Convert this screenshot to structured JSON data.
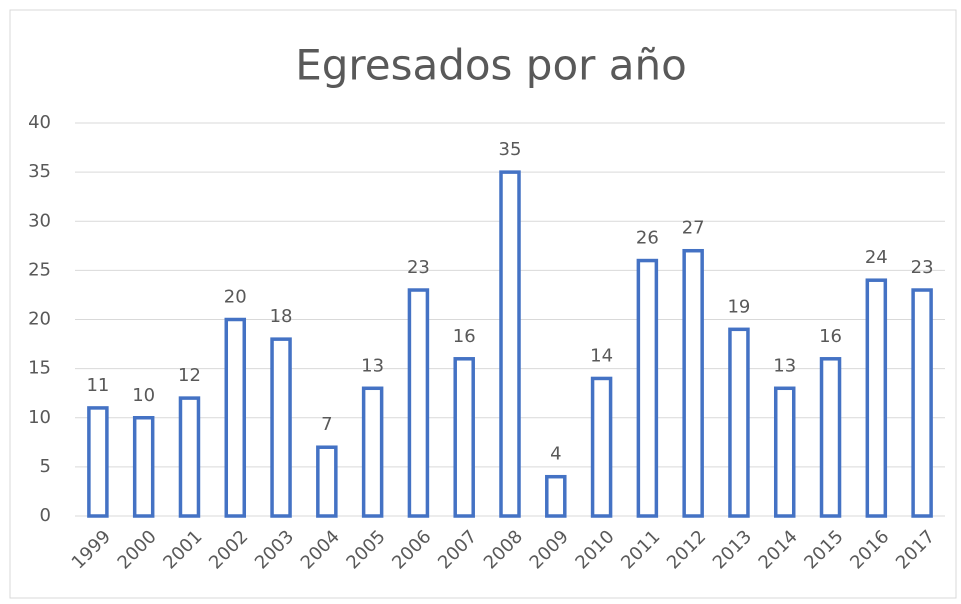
{
  "chart_data": {
    "type": "bar",
    "title": "Egresados por año",
    "categories": [
      "1999",
      "2000",
      "2001",
      "2002",
      "2003",
      "2004",
      "2005",
      "2006",
      "2007",
      "2008",
      "2009",
      "2010",
      "2011",
      "2012",
      "2013",
      "2014",
      "2015",
      "2016",
      "2017"
    ],
    "values": [
      11,
      10,
      12,
      20,
      18,
      7,
      13,
      23,
      16,
      35,
      4,
      14,
      26,
      27,
      19,
      13,
      16,
      24,
      23
    ],
    "color": "#4472c4",
    "ylim": [
      0,
      40
    ],
    "yticks": [
      0,
      5,
      10,
      15,
      20,
      25,
      30,
      35,
      40
    ],
    "grid": true
  }
}
